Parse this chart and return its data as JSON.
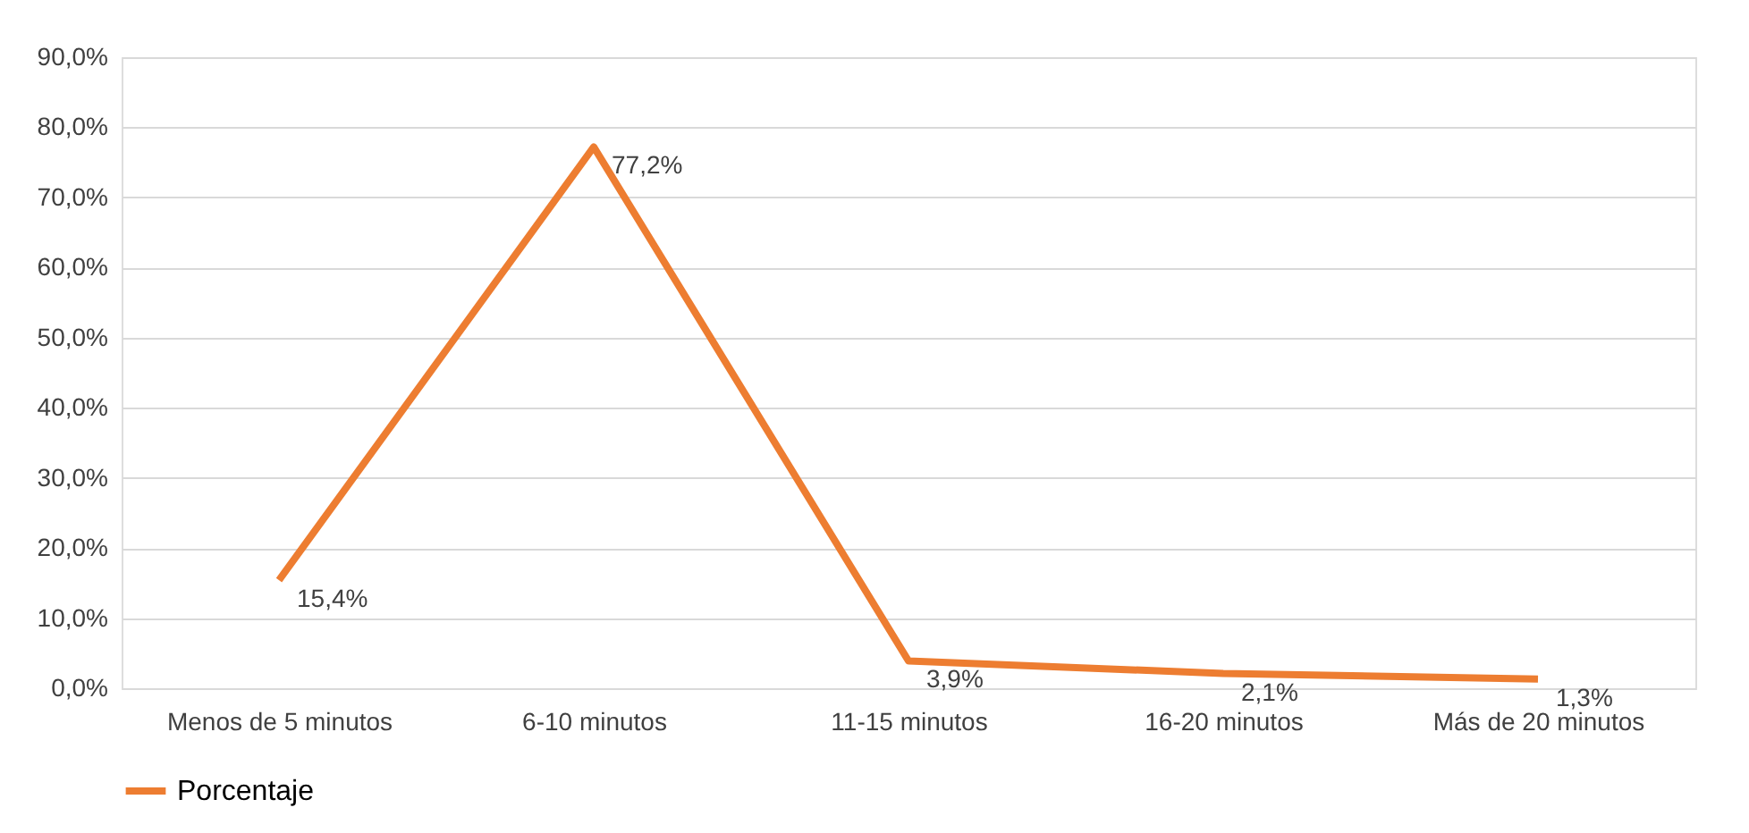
{
  "chart_data": {
    "type": "line",
    "categories": [
      "Menos de 5 minutos",
      "6-10 minutos",
      "11-15 minutos",
      "16-20 minutos",
      "Más de 20 minutos"
    ],
    "series": [
      {
        "name": "Porcentaje",
        "color": "#ed7d31",
        "values": [
          15.4,
          77.2,
          3.9,
          2.1,
          1.3
        ],
        "value_labels": [
          "15,4%",
          "77,2%",
          "3,9%",
          "2,1%",
          "1,3%"
        ]
      }
    ],
    "ylim": [
      0,
      90
    ],
    "yticks": [
      {
        "value": 0,
        "label": "0,0%"
      },
      {
        "value": 10,
        "label": "10,0%"
      },
      {
        "value": 20,
        "label": "20,0%"
      },
      {
        "value": 30,
        "label": "30,0%"
      },
      {
        "value": 40,
        "label": "40,0%"
      },
      {
        "value": 50,
        "label": "50,0%"
      },
      {
        "value": 60,
        "label": "60,0%"
      },
      {
        "value": 70,
        "label": "70,0%"
      },
      {
        "value": 80,
        "label": "80,0%"
      },
      {
        "value": 90,
        "label": "90,0%"
      }
    ],
    "grid": "y",
    "legend": "bottom",
    "line_style": "solid"
  }
}
